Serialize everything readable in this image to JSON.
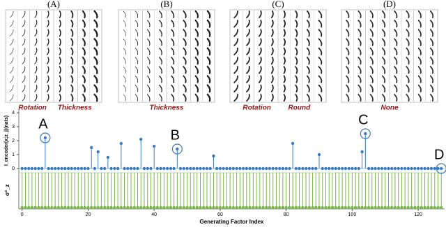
{
  "panels": [
    {
      "label": "(A)",
      "captions": [
        "Rotation",
        "Thickness"
      ]
    },
    {
      "label": "(B)",
      "captions": [
        "Thickness"
      ]
    },
    {
      "label": "(C)",
      "captions": [
        "Rotation",
        "Round"
      ]
    },
    {
      "label": "(D)",
      "captions": [
        "None"
      ]
    }
  ],
  "chart_data": {
    "type": "stem",
    "xlabel": "Generating Factor Index",
    "ylabel": "I_encoder(x;z_j)(nats)",
    "y2label": "σ²_z",
    "x": [
      0,
      1,
      2,
      3,
      4,
      5,
      6,
      7,
      8,
      9,
      10,
      11,
      12,
      13,
      14,
      15,
      16,
      17,
      18,
      19,
      20,
      21,
      22,
      23,
      24,
      25,
      26,
      27,
      28,
      29,
      30,
      31,
      32,
      33,
      34,
      35,
      36,
      37,
      38,
      39,
      40,
      41,
      42,
      43,
      44,
      45,
      46,
      47,
      48,
      49,
      50,
      51,
      52,
      53,
      54,
      55,
      56,
      57,
      58,
      59,
      60,
      61,
      62,
      63,
      64,
      65,
      66,
      67,
      68,
      69,
      70,
      71,
      72,
      73,
      74,
      75,
      76,
      77,
      78,
      79,
      80,
      81,
      82,
      83,
      84,
      85,
      86,
      87,
      88,
      89,
      90,
      91,
      92,
      93,
      94,
      95,
      96,
      97,
      98,
      99,
      100,
      101,
      102,
      103,
      104,
      105,
      106,
      107,
      108,
      109,
      110,
      111,
      112,
      113,
      114,
      115,
      116,
      117,
      118,
      119,
      120,
      121,
      122,
      123,
      124,
      125,
      126,
      127
    ],
    "series": [
      {
        "color": "#3a7bbf",
        "values": [
          0,
          0,
          0,
          0,
          0,
          0,
          0,
          2.2,
          0,
          0,
          0,
          0,
          0,
          0,
          0,
          0,
          0,
          0,
          0,
          0,
          0,
          1.5,
          0,
          1.2,
          0,
          0,
          0.8,
          0,
          0,
          0,
          1.8,
          0,
          0,
          0,
          0,
          0,
          2.1,
          0,
          0,
          0,
          1.6,
          0,
          0,
          0,
          0,
          0,
          0,
          1.4,
          0,
          0,
          0,
          0,
          0,
          0,
          0,
          0,
          0,
          0,
          0.9,
          0,
          0,
          0,
          0,
          0,
          0,
          0,
          0,
          0,
          0,
          0,
          0,
          0,
          0,
          0,
          0,
          0,
          0,
          0,
          0,
          0,
          0,
          0,
          1.8,
          0,
          0,
          0,
          0,
          0,
          0,
          0,
          1,
          0,
          0,
          0,
          0,
          0,
          0,
          0,
          0,
          0,
          0,
          0,
          0,
          1.2,
          2.5,
          0,
          0,
          0,
          0,
          0,
          0,
          0,
          0,
          0,
          0,
          0,
          0,
          0,
          0,
          0,
          0,
          0,
          0,
          0,
          0,
          0,
          0,
          0
        ]
      },
      {
        "color": "#7ab648",
        "axis": "y2",
        "values": [
          1,
          1,
          1,
          1,
          1,
          1,
          1,
          1,
          1,
          1,
          1,
          1,
          1,
          1,
          1,
          1,
          1,
          1,
          1,
          1,
          1,
          1,
          1,
          1,
          1,
          1,
          1,
          1,
          1,
          1,
          1,
          1,
          1,
          1,
          1,
          1,
          1,
          1,
          1,
          1,
          1,
          1,
          1,
          1,
          1,
          1,
          1,
          1,
          1,
          1,
          1,
          1,
          1,
          1,
          1,
          1,
          1,
          1,
          1,
          1,
          1,
          1,
          1,
          1,
          1,
          1,
          1,
          1,
          1,
          1,
          1,
          1,
          1,
          1,
          1,
          1,
          1,
          1,
          1,
          1,
          1,
          1,
          1,
          1,
          1,
          1,
          1,
          1,
          1,
          1,
          1,
          1,
          1,
          1,
          1,
          1,
          1,
          1,
          1,
          1,
          1,
          1,
          1,
          1,
          1,
          1,
          1,
          1,
          1,
          1,
          1,
          1,
          1,
          1,
          1,
          1,
          1,
          1,
          1,
          1,
          1,
          1,
          1,
          1,
          1,
          1,
          1,
          1
        ]
      }
    ],
    "annotations": [
      {
        "text": "A",
        "index": 7
      },
      {
        "text": "B",
        "index": 47
      },
      {
        "text": "C",
        "index": 104
      },
      {
        "text": "D",
        "index": 127
      }
    ],
    "xlim": [
      -1,
      128
    ],
    "xticks": [
      0,
      20,
      40,
      60,
      80,
      100,
      120
    ],
    "ylim": [
      0,
      4
    ],
    "yticks": [
      0,
      1,
      2,
      3,
      4
    ],
    "y2lim": [
      0,
      1
    ]
  }
}
